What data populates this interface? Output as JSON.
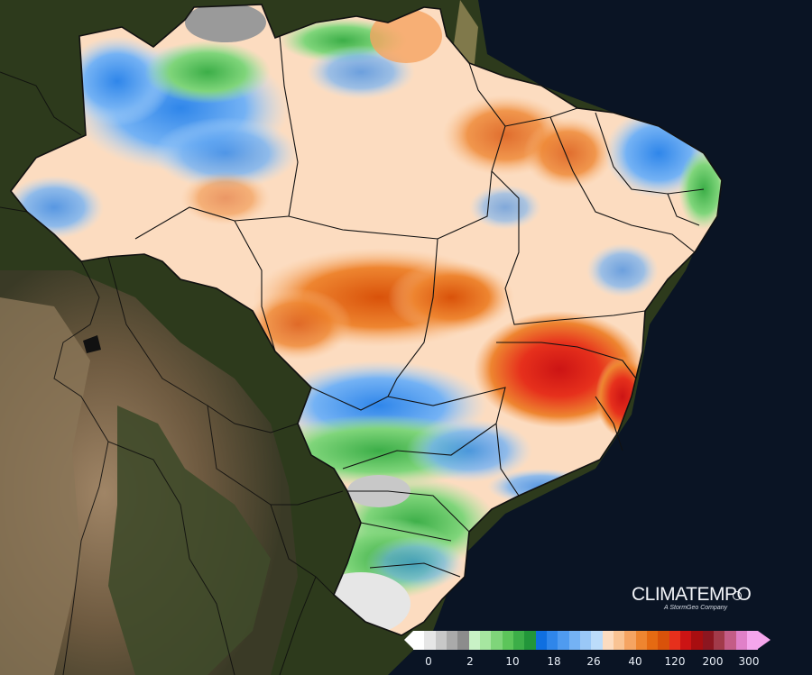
{
  "brand": {
    "name": "CLIMATEMPO",
    "tagline": "A StormGeo Company"
  },
  "legend": {
    "ticks": [
      "0",
      "2",
      "10",
      "18",
      "26",
      "40",
      "120",
      "200",
      "300"
    ],
    "colors": [
      "#ffffff",
      "#e6e6e6",
      "#c8c8c8",
      "#aaaaaa",
      "#8c8c8c",
      "#c9f2c6",
      "#a6e6a0",
      "#7fd57a",
      "#5cc55a",
      "#3cae48",
      "#22963a",
      "#0f6fe0",
      "#2f86ea",
      "#4f9bf0",
      "#74b2f4",
      "#9ac8f7",
      "#bcdcfa",
      "#fcdcc0",
      "#f9c393",
      "#f5a462",
      "#ee8530",
      "#e56a12",
      "#d9520a",
      "#e6301c",
      "#cc1414",
      "#a80e10",
      "#8c1620",
      "#a23a4a",
      "#c45c86",
      "#e080c8",
      "#f5a6ec"
    ]
  },
  "map": {
    "ocean_color": "#0a1424",
    "land_color": "#2d3a1c",
    "boundary_color": "#111111"
  }
}
